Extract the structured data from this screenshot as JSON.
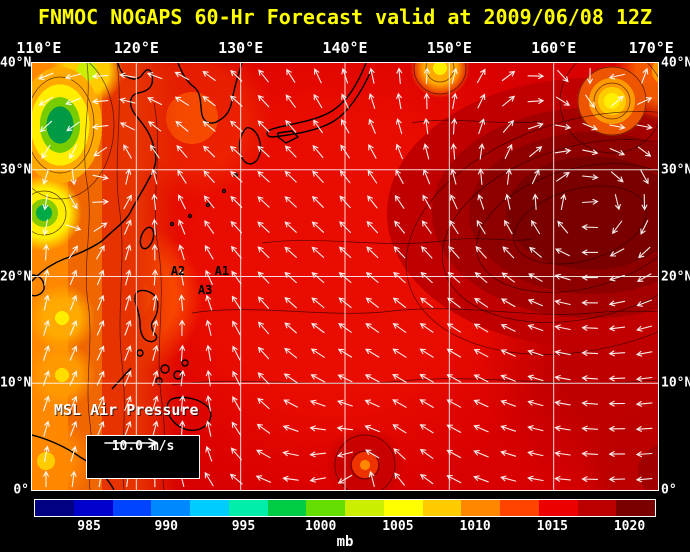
{
  "header": {
    "title": "FNMOC NOGAPS 60-Hr Forecast valid at 2009/06/08 12Z"
  },
  "map": {
    "top_axis": [
      "110°E",
      "120°E",
      "130°E",
      "140°E",
      "150°E",
      "160°E",
      "170°E"
    ],
    "left_axis": [
      "40°N",
      "30°N",
      "20°N",
      "10°N",
      "0°"
    ],
    "right_axis": [
      "40°N",
      "30°N",
      "20°N",
      "10°N",
      "0°"
    ],
    "lon_range": [
      110,
      170
    ],
    "lat_range": [
      0,
      40
    ],
    "field_label": "MSL Air Pressure",
    "wind_scale": {
      "label": "10.0 m/s"
    },
    "annotations": [
      {
        "label": "A1",
        "lon": 128.2,
        "lat": 20.5
      },
      {
        "label": "A2",
        "lon": 124.0,
        "lat": 20.5
      },
      {
        "label": "A3",
        "lon": 126.6,
        "lat": 18.7
      }
    ]
  },
  "colorbar": {
    "unit": "mb",
    "ticks": [
      985,
      990,
      995,
      1000,
      1005,
      1010,
      1015,
      1020
    ],
    "range": [
      981.5,
      1021.65
    ],
    "colors": [
      "#000080",
      "#0000cc",
      "#0044ff",
      "#0088ff",
      "#00ccff",
      "#00eeaa",
      "#00cc44",
      "#66dd00",
      "#ccee00",
      "#ffff00",
      "#ffcc00",
      "#ff8800",
      "#ff4400",
      "#ee0000",
      "#bb0000",
      "#7a0000"
    ]
  },
  "colors": {
    "title_text": "#ffff00",
    "axis_text": "#ffffff",
    "background": "#000000"
  }
}
